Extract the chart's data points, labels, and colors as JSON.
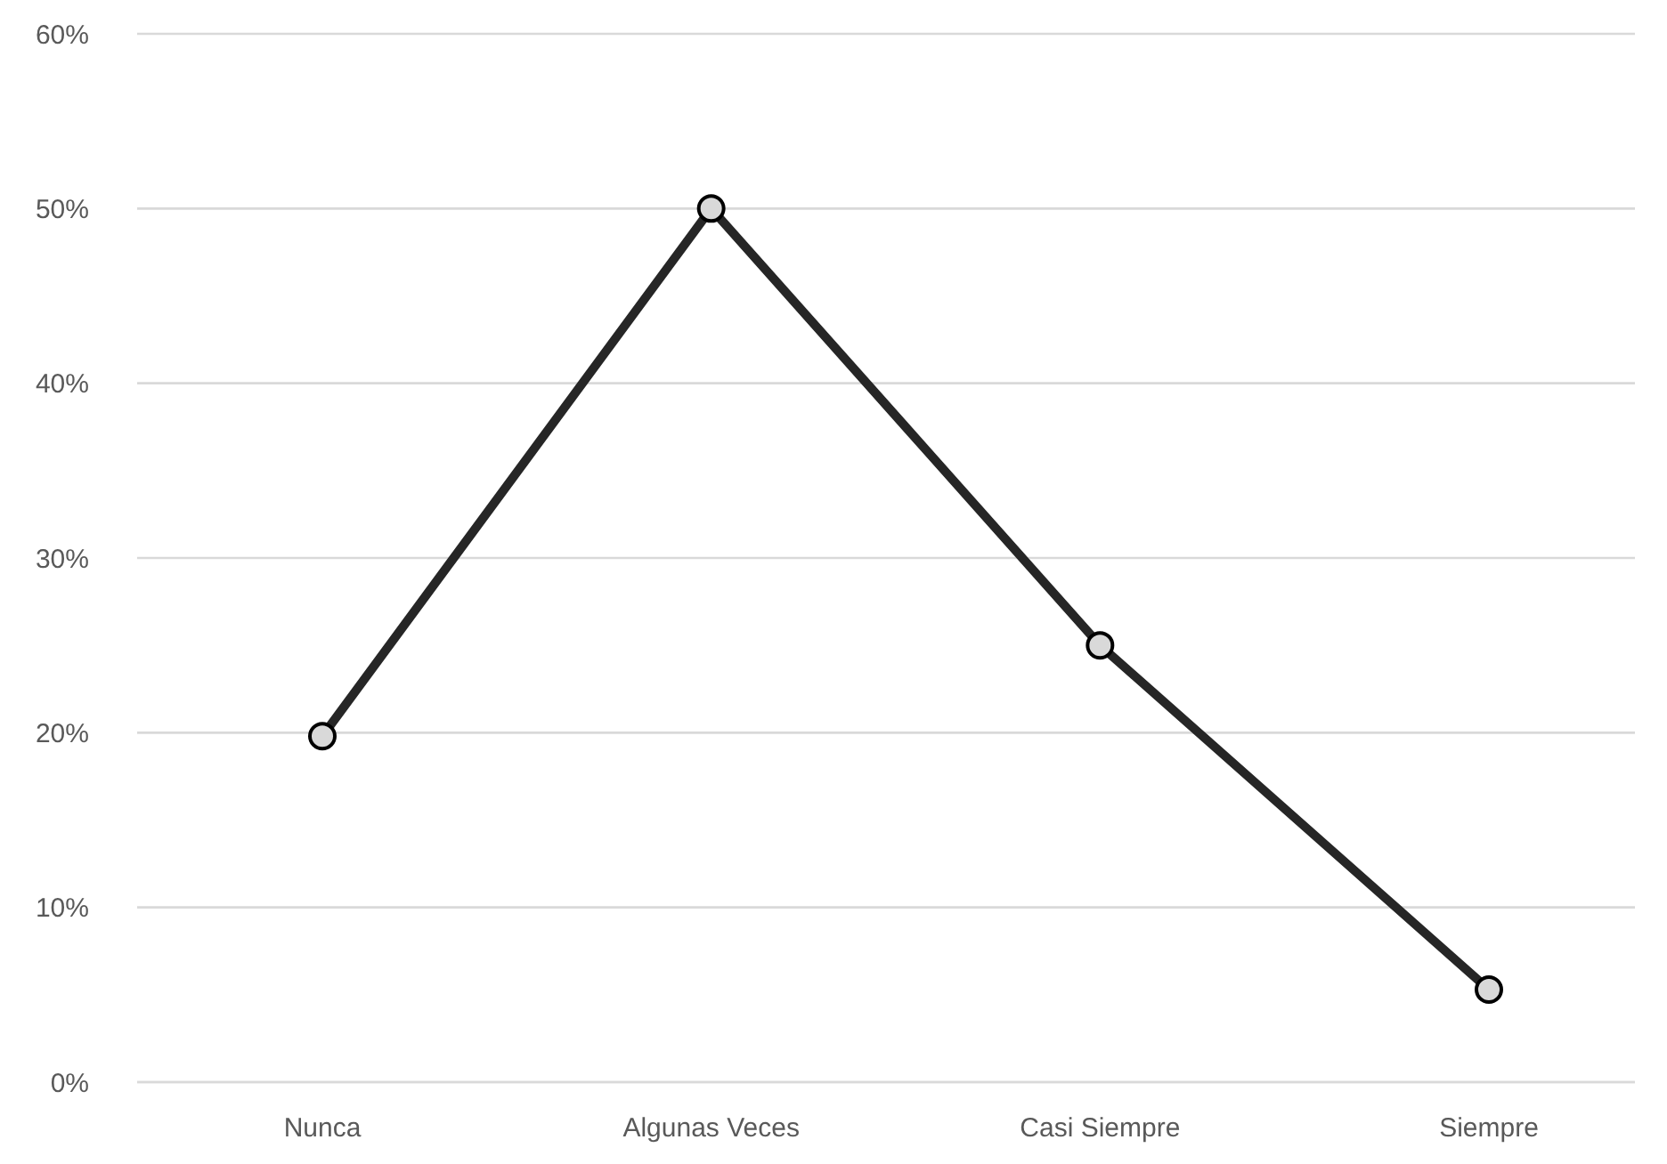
{
  "chart_data": {
    "type": "line",
    "categories": [
      "Nunca",
      "Algunas Veces",
      "Casi Siempre",
      "Siempre"
    ],
    "values": [
      19.8,
      50,
      25,
      5.3
    ],
    "color": "#262626",
    "ylim": [
      0,
      60
    ],
    "yticks": [
      {
        "value": 0,
        "label": "0%"
      },
      {
        "value": 10,
        "label": "10%"
      },
      {
        "value": 20,
        "label": "20%"
      },
      {
        "value": 30,
        "label": "30%"
      },
      {
        "value": 40,
        "label": "40%"
      },
      {
        "value": 50,
        "label": "50%"
      },
      {
        "value": 60,
        "label": "60%"
      }
    ],
    "grid": "y",
    "marker": "circle",
    "line_style": "solid"
  }
}
